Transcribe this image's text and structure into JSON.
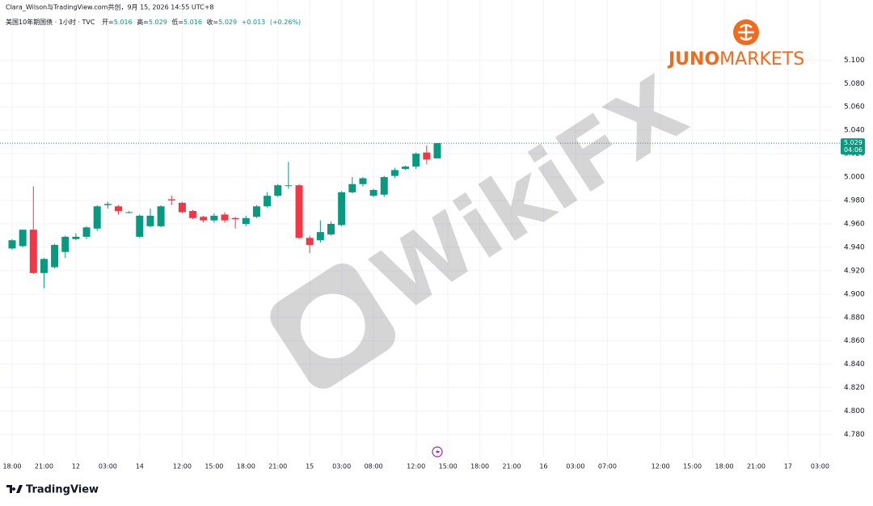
{
  "header": {
    "credit": "Clara_Wilson与TradingView.com共创，9月 15, 2026 14:55 UTC+8",
    "symbol": "美国10年期国债 · 1小时 · TVC",
    "open_label": "开=",
    "open": 5.016,
    "high_label": "高=",
    "high": 5.029,
    "low_label": "低=",
    "low": 5.016,
    "close_label": "收=",
    "close": 5.029,
    "change": "+0.013",
    "change_pct": "(+0.26%)"
  },
  "brand": {
    "first": "JUNO",
    "second": "MARKETS"
  },
  "watermark": "WikiFX",
  "footer_logo": "TradingView",
  "chart_data": {
    "type": "candlestick",
    "categories": [
      "18:00",
      null,
      null,
      "21:00",
      null,
      null,
      "12",
      null,
      null,
      "03:00",
      null,
      null,
      "14",
      null,
      null,
      null,
      "12:00",
      null,
      null,
      "15:00",
      null,
      null,
      "18:00",
      null,
      null,
      "21:00",
      null,
      null,
      "15",
      null,
      null,
      "03:00",
      null,
      null,
      "08:00",
      null,
      null,
      null,
      "12:00",
      null,
      null,
      "15:00",
      null,
      null,
      "18:00",
      null,
      null,
      "21:00",
      null,
      null,
      "16",
      null,
      null,
      "03:00",
      null,
      null,
      "07:00",
      null,
      null,
      null,
      null,
      "12:00",
      null,
      null,
      "15:00",
      null,
      null,
      "18:00",
      null,
      null,
      "21:00",
      null,
      null,
      "17",
      null,
      null,
      "03:00"
    ],
    "open": [
      4.939,
      4.941,
      4.955,
      4.918,
      4.923,
      4.936,
      4.947,
      4.949,
      4.956,
      4.976,
      4.975,
      4.97,
      4.949,
      4.958,
      4.958,
      4.981,
      4.978,
      4.971,
      4.966,
      4.963,
      4.968,
      4.965,
      4.96,
      4.966,
      4.975,
      4.984,
      4.993,
      4.993,
      4.948,
      4.946,
      4.951,
      4.959,
      4.987,
      4.994,
      4.984,
      4.985,
      5.001,
      5.007,
      5.009,
      5.021,
      5.016,
      null,
      null,
      null,
      null,
      null,
      null,
      null,
      null,
      null,
      null,
      null,
      null,
      null,
      null,
      null,
      null,
      null,
      null,
      null,
      null,
      null,
      null,
      null,
      null,
      null,
      null,
      null,
      null,
      null,
      null,
      null,
      null,
      null,
      null,
      null,
      null
    ],
    "high": [
      4.947,
      4.955,
      4.992,
      4.931,
      4.943,
      4.95,
      4.952,
      4.958,
      4.976,
      4.979,
      4.976,
      4.971,
      4.968,
      4.973,
      4.976,
      4.984,
      4.979,
      4.972,
      4.967,
      4.969,
      4.97,
      4.966,
      4.967,
      4.976,
      4.987,
      4.994,
      5.013,
      4.994,
      4.95,
      4.963,
      4.962,
      4.988,
      5.0,
      5.0,
      4.99,
      5.001,
      5.008,
      5.01,
      5.021,
      5.027,
      5.029,
      null,
      null,
      null,
      null,
      null,
      null,
      null,
      null,
      null,
      null,
      null,
      null,
      null,
      null,
      null,
      null,
      null,
      null,
      null,
      null,
      null,
      null,
      null,
      null,
      null,
      null,
      null,
      null,
      null,
      null,
      null,
      null,
      null,
      null,
      null,
      null
    ],
    "low": [
      4.938,
      4.94,
      4.917,
      4.905,
      4.922,
      4.931,
      4.946,
      4.947,
      4.954,
      4.973,
      4.968,
      4.969,
      4.948,
      4.957,
      4.957,
      4.976,
      4.969,
      4.964,
      4.961,
      4.961,
      4.961,
      4.956,
      4.958,
      4.965,
      4.974,
      4.983,
      4.99,
      4.947,
      4.935,
      4.944,
      4.95,
      4.958,
      4.986,
      4.992,
      4.983,
      4.983,
      4.999,
      5.006,
      5.007,
      5.011,
      5.016,
      null,
      null,
      null,
      null,
      null,
      null,
      null,
      null,
      null,
      null,
      null,
      null,
      null,
      null,
      null,
      null,
      null,
      null,
      null,
      null,
      null,
      null,
      null,
      null,
      null,
      null,
      null,
      null,
      null,
      null,
      null,
      null,
      null,
      null,
      null,
      null
    ],
    "close": [
      4.946,
      4.955,
      4.918,
      4.93,
      4.942,
      4.949,
      4.949,
      4.957,
      4.975,
      4.977,
      4.971,
      4.97,
      4.967,
      4.967,
      4.975,
      4.98,
      4.97,
      4.965,
      4.963,
      4.967,
      4.963,
      4.964,
      4.965,
      4.975,
      4.984,
      4.993,
      4.993,
      4.948,
      4.942,
      4.953,
      4.96,
      4.987,
      4.994,
      4.999,
      4.989,
      5.0,
      5.006,
      5.009,
      5.02,
      5.015,
      5.029,
      null,
      null,
      null,
      null,
      null,
      null,
      null,
      null,
      null,
      null,
      null,
      null,
      null,
      null,
      null,
      null,
      null,
      null,
      null,
      null,
      null,
      null,
      null,
      null,
      null,
      null,
      null,
      null,
      null,
      null,
      null,
      null,
      null,
      null,
      null,
      null
    ],
    "up_color": "#089981",
    "down_color": "#f23645",
    "ylim": [
      4.761,
      5.141
    ],
    "yticks": [
      {
        "value": 4.78,
        "label": "4.780"
      },
      {
        "value": 4.8,
        "label": "4.800"
      },
      {
        "value": 4.82,
        "label": "4.820"
      },
      {
        "value": 4.84,
        "label": "4.840"
      },
      {
        "value": 4.86,
        "label": "4.860"
      },
      {
        "value": 4.88,
        "label": "4.880"
      },
      {
        "value": 4.9,
        "label": "4.900"
      },
      {
        "value": 4.92,
        "label": "4.920"
      },
      {
        "value": 4.94,
        "label": "4.940"
      },
      {
        "value": 4.96,
        "label": "4.960"
      },
      {
        "value": 4.98,
        "label": "4.980"
      },
      {
        "value": 5.0,
        "label": "5.000"
      },
      {
        "value": 5.02,
        "label": "5.020"
      },
      {
        "value": 5.04,
        "label": "5.040"
      },
      {
        "value": 5.06,
        "label": "5.060"
      },
      {
        "value": 5.08,
        "label": "5.080"
      },
      {
        "value": 5.1,
        "label": "5.100"
      }
    ],
    "grid": true,
    "last_price": 5.029,
    "countdown": "04:06"
  }
}
